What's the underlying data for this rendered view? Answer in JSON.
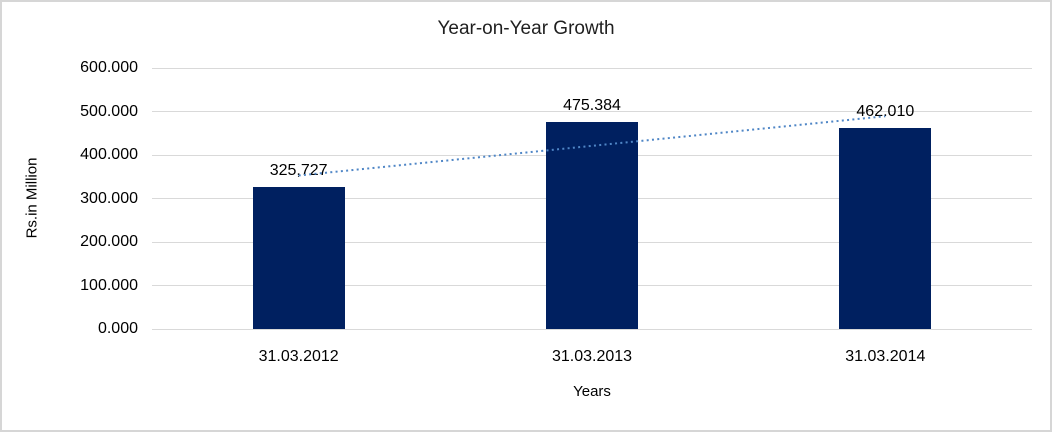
{
  "chart_data": {
    "type": "bar",
    "title": "Year-on-Year Growth",
    "xlabel": "Years",
    "ylabel": "Rs.in Million",
    "categories": [
      "31.03.2012",
      "31.03.2013",
      "31.03.2014"
    ],
    "series": [
      {
        "name": "Rs.in Million",
        "values": [
          325.727,
          475.384,
          462.01
        ],
        "value_labels": [
          "325,727",
          "475.384",
          "462.010"
        ]
      }
    ],
    "ytick_labels": [
      "600.000",
      "500.000",
      "400.000",
      "300.000",
      "200.000",
      "100.000",
      "0.000"
    ],
    "ylim": [
      0,
      600
    ],
    "grid": true,
    "legend": "none",
    "trendline": {
      "type": "linear",
      "style": "dotted"
    },
    "colors": {
      "bar": "#002060",
      "trendline": "#4f86c6",
      "gridline": "#d9d9d9",
      "text": "#000000",
      "border": "#d6d6d6",
      "background": "#ffffff"
    }
  }
}
